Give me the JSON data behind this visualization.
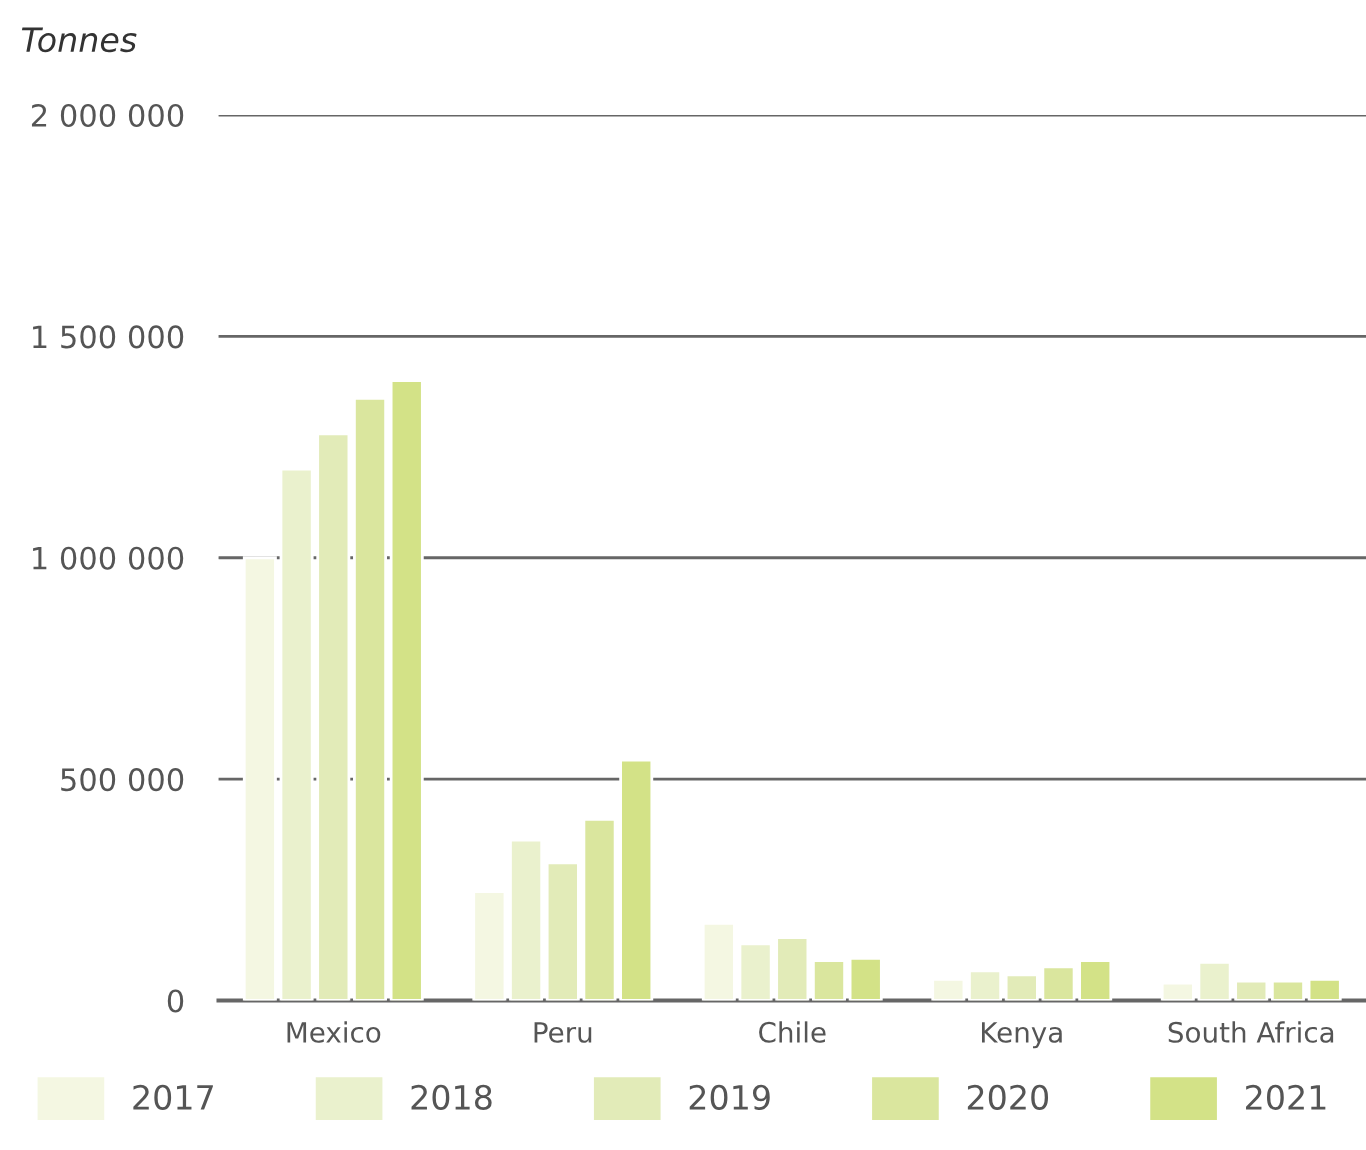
{
  "chart_data": {
    "type": "bar",
    "ylabel": "Tonnes",
    "categories": [
      "Mexico",
      "Peru",
      "Chile",
      "Kenya",
      "South Africa"
    ],
    "series": [
      {
        "name": "2017",
        "color": "#f4f7e2",
        "values": [
          1000000,
          246000,
          174000,
          48000,
          39000
        ]
      },
      {
        "name": "2018",
        "color": "#eaf1cd",
        "values": [
          1200000,
          362000,
          128000,
          67000,
          86000
        ]
      },
      {
        "name": "2019",
        "color": "#e2ebb8",
        "values": [
          1280000,
          311000,
          142000,
          58000,
          44000
        ]
      },
      {
        "name": "2020",
        "color": "#dae69e",
        "values": [
          1360000,
          409000,
          90000,
          76000,
          44000
        ]
      },
      {
        "name": "2021",
        "color": "#d3e287",
        "values": [
          1400000,
          543000,
          95000,
          90000,
          48000
        ]
      }
    ],
    "ylim": [
      0,
      2000000
    ],
    "yticks": [
      {
        "value": 0,
        "label": "0"
      },
      {
        "value": 500000,
        "label": "500 000"
      },
      {
        "value": 1000000,
        "label": "1 000 000"
      },
      {
        "value": 1500000,
        "label": "1 500 000"
      },
      {
        "value": 2000000,
        "label": "2 000 000"
      }
    ],
    "grid": "y",
    "legend": "bottom"
  }
}
